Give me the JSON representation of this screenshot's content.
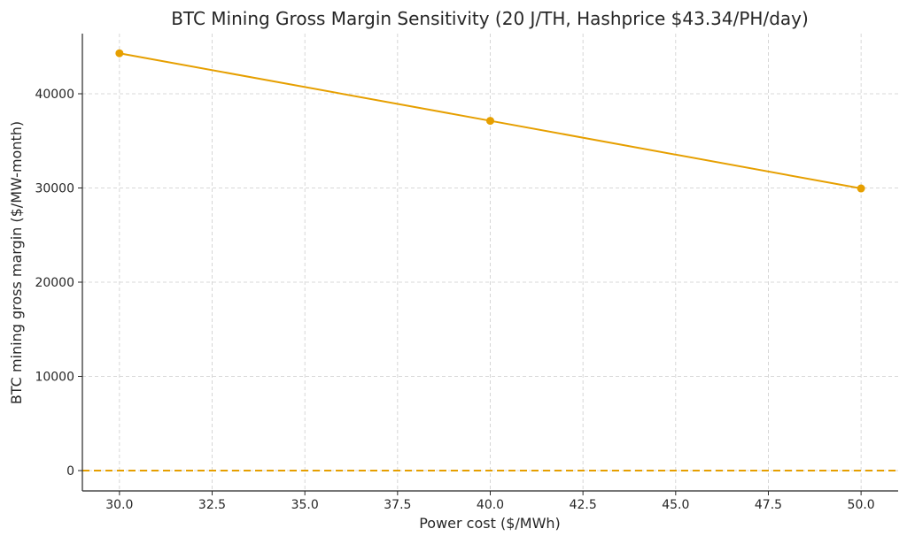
{
  "chart_data": {
    "type": "line",
    "title": "BTC Mining Gross Margin Sensitivity (20 J/TH, Hashprice $43.34/PH/day)",
    "xlabel": "Power cost ($/MWh)",
    "ylabel": "BTC mining gross margin ($/MW-month)",
    "x": [
      30,
      40,
      50
    ],
    "series": [
      {
        "values": [
          44300,
          37130,
          29950
        ],
        "color": "#E69F00",
        "marker": "circle"
      }
    ],
    "reference_line": {
      "y": 0,
      "style": "dashed",
      "color": "#E69F00"
    },
    "xlim": [
      29.0,
      51.0
    ],
    "ylim": [
      -2160,
      46385
    ],
    "xticks": [
      "30.0",
      "32.5",
      "35.0",
      "37.5",
      "40.0",
      "42.5",
      "45.0",
      "47.5",
      "50.0"
    ],
    "yticks": [
      "0",
      "10000",
      "20000",
      "30000",
      "40000"
    ],
    "grid": true
  }
}
